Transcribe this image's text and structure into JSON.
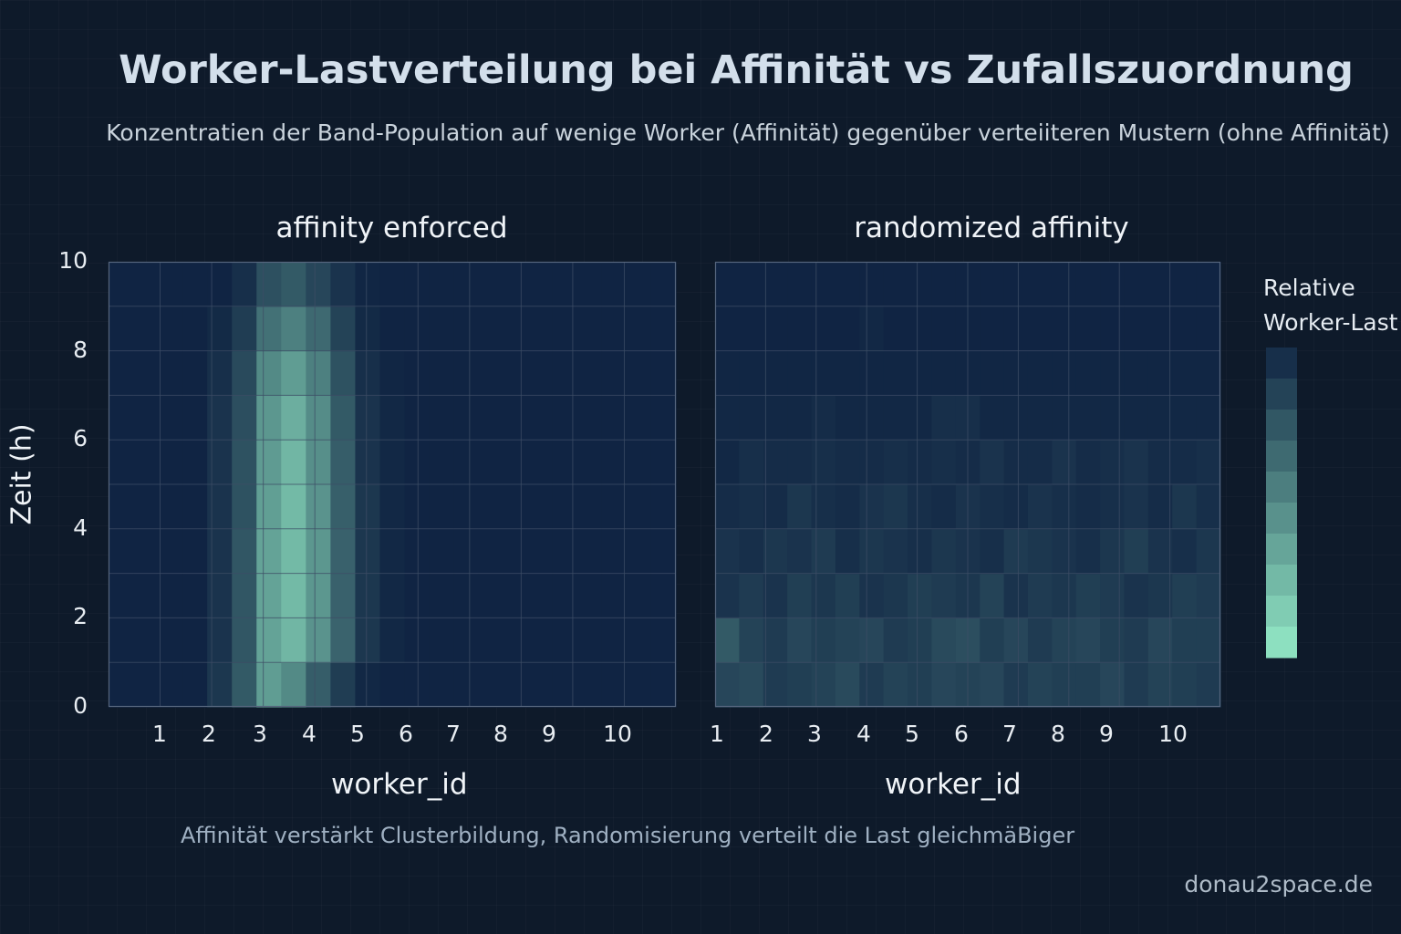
{
  "title": "Worker-Lastverteilung bei Affinität vs  Zufallszuordnung",
  "subtitle": "Konzentratien der Band-Population auf wenige Worker (Affinität) gegenüber verteiiteren Mustern (ohne Affinität)",
  "caption": "Affinität verstärkt Clusterbildung, Randomisierung verteilt die Last gleichmäBiger",
  "credit": "donau2space.de",
  "colors": {
    "background": "#0e1a2a",
    "cell_low": "#0d2040",
    "cell_high": "#8de0c0",
    "grid": "#3d4d66"
  },
  "chart_data": [
    {
      "type": "heatmap",
      "title": "affinity enforced",
      "xlabel": "worker_id",
      "ylabel": "Zeit (h)",
      "x_ticks": [
        "1",
        "2",
        "3",
        "4",
        "5",
        "6",
        "7",
        "8",
        "9",
        "10"
      ],
      "y_ticks": [
        "0",
        "2",
        "4",
        "6",
        "8",
        "10"
      ],
      "ylim": [
        0,
        10
      ],
      "grid": true,
      "values": [
        [
          0.02,
          0.02,
          0.02,
          0.02,
          0.12,
          0.3,
          0.65,
          0.55,
          0.32,
          0.15,
          0.04,
          0.02,
          0.02,
          0.02,
          0.02,
          0.02,
          0.02,
          0.02,
          0.02,
          0.02,
          0.02,
          0.02,
          0.02
        ],
        [
          0.02,
          0.02,
          0.02,
          0.02,
          0.1,
          0.28,
          0.68,
          0.78,
          0.6,
          0.35,
          0.12,
          0.04,
          0.02,
          0.02,
          0.02,
          0.02,
          0.02,
          0.02,
          0.02,
          0.02,
          0.02,
          0.02,
          0.02
        ],
        [
          0.02,
          0.02,
          0.02,
          0.02,
          0.1,
          0.28,
          0.68,
          0.8,
          0.62,
          0.34,
          0.12,
          0.04,
          0.02,
          0.02,
          0.02,
          0.02,
          0.02,
          0.02,
          0.02,
          0.02,
          0.02,
          0.02,
          0.02
        ],
        [
          0.02,
          0.02,
          0.02,
          0.02,
          0.1,
          0.28,
          0.68,
          0.8,
          0.62,
          0.34,
          0.12,
          0.04,
          0.02,
          0.02,
          0.02,
          0.02,
          0.02,
          0.02,
          0.02,
          0.02,
          0.02,
          0.02,
          0.02
        ],
        [
          0.02,
          0.02,
          0.02,
          0.02,
          0.1,
          0.26,
          0.66,
          0.8,
          0.6,
          0.33,
          0.12,
          0.04,
          0.02,
          0.02,
          0.02,
          0.02,
          0.02,
          0.02,
          0.02,
          0.02,
          0.02,
          0.02,
          0.02
        ],
        [
          0.02,
          0.02,
          0.02,
          0.02,
          0.1,
          0.26,
          0.64,
          0.78,
          0.58,
          0.32,
          0.1,
          0.04,
          0.02,
          0.02,
          0.02,
          0.02,
          0.02,
          0.02,
          0.02,
          0.02,
          0.02,
          0.02,
          0.02
        ],
        [
          0.02,
          0.02,
          0.02,
          0.02,
          0.1,
          0.24,
          0.62,
          0.74,
          0.56,
          0.3,
          0.1,
          0.04,
          0.02,
          0.02,
          0.02,
          0.02,
          0.02,
          0.02,
          0.02,
          0.02,
          0.02,
          0.02,
          0.02
        ],
        [
          0.02,
          0.02,
          0.02,
          0.02,
          0.08,
          0.22,
          0.55,
          0.65,
          0.5,
          0.26,
          0.08,
          0.03,
          0.02,
          0.02,
          0.02,
          0.02,
          0.02,
          0.02,
          0.02,
          0.02,
          0.02,
          0.02,
          0.02
        ],
        [
          0.02,
          0.02,
          0.02,
          0.02,
          0.05,
          0.15,
          0.42,
          0.5,
          0.38,
          0.18,
          0.05,
          0.02,
          0.02,
          0.02,
          0.02,
          0.02,
          0.02,
          0.02,
          0.02,
          0.02,
          0.02,
          0.02,
          0.02
        ],
        [
          0.02,
          0.02,
          0.02,
          0.02,
          0.02,
          0.08,
          0.25,
          0.3,
          0.2,
          0.1,
          0.03,
          0.02,
          0.02,
          0.02,
          0.02,
          0.02,
          0.02,
          0.02,
          0.02,
          0.02,
          0.02,
          0.02,
          0.02
        ]
      ]
    },
    {
      "type": "heatmap",
      "title": "randomized affinity",
      "xlabel": "worker_id",
      "x_ticks": [
        "1",
        "2",
        "3",
        "4",
        "5",
        "6",
        "7",
        "8",
        "9",
        "10"
      ],
      "grid": true,
      "values": [
        [
          0.2,
          0.22,
          0.14,
          0.16,
          0.18,
          0.22,
          0.14,
          0.18,
          0.16,
          0.2,
          0.18,
          0.2,
          0.14,
          0.18,
          0.16,
          0.16,
          0.2,
          0.14,
          0.18,
          0.16,
          0.14
        ],
        [
          0.3,
          0.18,
          0.14,
          0.2,
          0.16,
          0.18,
          0.2,
          0.14,
          0.16,
          0.22,
          0.24,
          0.16,
          0.2,
          0.14,
          0.18,
          0.2,
          0.16,
          0.14,
          0.2,
          0.16,
          0.16
        ],
        [
          0.1,
          0.14,
          0.1,
          0.16,
          0.12,
          0.16,
          0.1,
          0.12,
          0.16,
          0.14,
          0.12,
          0.18,
          0.1,
          0.14,
          0.12,
          0.16,
          0.14,
          0.1,
          0.12,
          0.16,
          0.14
        ],
        [
          0.1,
          0.08,
          0.12,
          0.1,
          0.14,
          0.08,
          0.12,
          0.1,
          0.08,
          0.12,
          0.1,
          0.08,
          0.14,
          0.12,
          0.1,
          0.08,
          0.12,
          0.16,
          0.1,
          0.08,
          0.12
        ],
        [
          0.06,
          0.08,
          0.06,
          0.12,
          0.08,
          0.06,
          0.1,
          0.12,
          0.08,
          0.06,
          0.1,
          0.08,
          0.06,
          0.1,
          0.08,
          0.06,
          0.08,
          0.1,
          0.06,
          0.12,
          0.08
        ],
        [
          0.04,
          0.08,
          0.06,
          0.06,
          0.08,
          0.06,
          0.06,
          0.08,
          0.06,
          0.08,
          0.06,
          0.1,
          0.06,
          0.06,
          0.1,
          0.06,
          0.08,
          0.1,
          0.06,
          0.06,
          0.08
        ],
        [
          0.04,
          0.04,
          0.04,
          0.04,
          0.06,
          0.04,
          0.04,
          0.04,
          0.04,
          0.08,
          0.08,
          0.04,
          0.04,
          0.04,
          0.04,
          0.04,
          0.04,
          0.04,
          0.04,
          0.04,
          0.04
        ],
        [
          0.03,
          0.03,
          0.03,
          0.03,
          0.03,
          0.03,
          0.03,
          0.03,
          0.03,
          0.03,
          0.03,
          0.03,
          0.03,
          0.03,
          0.03,
          0.03,
          0.03,
          0.03,
          0.03,
          0.03,
          0.03
        ],
        [
          0.02,
          0.02,
          0.02,
          0.02,
          0.02,
          0.02,
          0.04,
          0.02,
          0.02,
          0.02,
          0.02,
          0.02,
          0.02,
          0.02,
          0.02,
          0.02,
          0.02,
          0.02,
          0.02,
          0.02,
          0.02
        ],
        [
          0.02,
          0.02,
          0.02,
          0.02,
          0.02,
          0.02,
          0.02,
          0.02,
          0.02,
          0.02,
          0.02,
          0.02,
          0.02,
          0.02,
          0.02,
          0.02,
          0.02,
          0.02,
          0.02,
          0.02,
          0.02
        ]
      ]
    }
  ],
  "colorbar": {
    "title_line1": "Relative",
    "title_line2": "Worker-Last",
    "levels": 10
  }
}
